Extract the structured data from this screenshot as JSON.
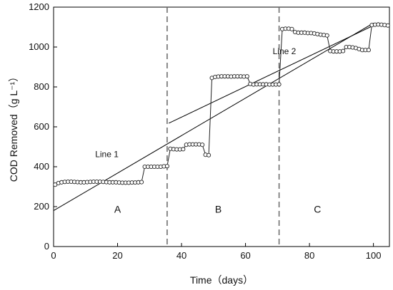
{
  "chart_data": {
    "type": "scatter",
    "title": "",
    "xlabel": "Time（days）",
    "ylabel": "COD Removed（g L⁻¹）",
    "xlim": [
      0,
      105
    ],
    "ylim": [
      0,
      1200
    ],
    "xticks": [
      0,
      20,
      40,
      60,
      80,
      100
    ],
    "yticks": [
      0,
      200,
      400,
      600,
      800,
      1000,
      1200
    ],
    "grid": false,
    "legend": "none",
    "colors": {
      "axis": "#000000",
      "marker_fill": "#ffffff",
      "marker_stroke": "#222222",
      "divider": "#666666"
    },
    "series": [
      {
        "x": [
          0.5,
          1.5,
          2.5,
          3.5,
          4.5,
          5.5,
          6.5,
          7.5,
          8.5,
          9.5,
          10.5,
          11.5,
          12.5,
          13.5,
          14.5,
          15.5,
          16.5,
          17.5,
          18.5,
          19.5,
          20.5,
          21.5,
          22.5,
          23.5,
          24.5,
          25.5,
          26.5,
          27.5,
          28.5,
          29.5,
          30.5,
          31.5,
          32.5,
          33.5,
          34.5,
          35.5,
          36.5,
          37.5,
          38.5,
          39.5,
          40.5,
          41.5,
          42.5,
          43.5,
          44.5,
          45.5,
          46.5,
          47.5,
          48.5,
          49.5,
          50.5,
          51.5,
          52.5,
          53.5,
          54.5,
          55.5,
          56.5,
          57.5,
          58.5,
          59.5,
          60.5,
          61.5,
          62.5,
          63.5,
          64.5,
          65.5,
          66.5,
          67.5,
          68.5,
          69.5,
          70.5,
          71.5,
          72.5,
          73.5,
          74.5,
          75.5,
          76.5,
          77.5,
          78.5,
          79.5,
          80.5,
          81.5,
          82.5,
          83.5,
          84.5,
          85.5,
          86.5,
          87.5,
          88.5,
          89.5,
          90.5,
          91.5,
          92.5,
          93.5,
          94.5,
          95.5,
          96.5,
          97.5,
          98.5,
          99.5,
          100.5,
          101.5,
          102.5,
          103.5,
          104.5
        ],
        "y": [
          310,
          318,
          322,
          324,
          325,
          325,
          324,
          323,
          322,
          322,
          323,
          324,
          325,
          325,
          325,
          324,
          323,
          322,
          322,
          322,
          321,
          320,
          320,
          320,
          321,
          321,
          322,
          323,
          400,
          400,
          400,
          400,
          400,
          400,
          402,
          403,
          490,
          488,
          487,
          487,
          488,
          510,
          512,
          512,
          512,
          512,
          510,
          460,
          458,
          845,
          850,
          852,
          853,
          853,
          853,
          852,
          853,
          853,
          853,
          852,
          853,
          815,
          812,
          813,
          813,
          813,
          813,
          812,
          812,
          812,
          813,
          1090,
          1092,
          1092,
          1090,
          1075,
          1072,
          1072,
          1072,
          1070,
          1070,
          1068,
          1065,
          1062,
          1060,
          1058,
          980,
          978,
          978,
          978,
          980,
          1000,
          1000,
          998,
          995,
          990,
          985,
          985,
          985,
          1110,
          1112,
          1113,
          1112,
          1110,
          1108
        ]
      }
    ],
    "trend_lines": [
      {
        "name": "Line 1",
        "x": [
          0,
          100
        ],
        "y": [
          180,
          1120
        ]
      },
      {
        "name": "Line 2",
        "x": [
          36,
          100
        ],
        "y": [
          618,
          1108
        ]
      }
    ],
    "dividers": [
      35.5,
      70.5
    ],
    "phases": [
      {
        "label": "A",
        "x": 20,
        "y": 170
      },
      {
        "label": "B",
        "x": 51.5,
        "y": 170
      },
      {
        "label": "C",
        "x": 82.5,
        "y": 170
      }
    ],
    "annotations": [
      {
        "text": "Line 1",
        "x": 13,
        "y": 448
      },
      {
        "text": "Line 2",
        "x": 68.5,
        "y": 965
      }
    ]
  }
}
